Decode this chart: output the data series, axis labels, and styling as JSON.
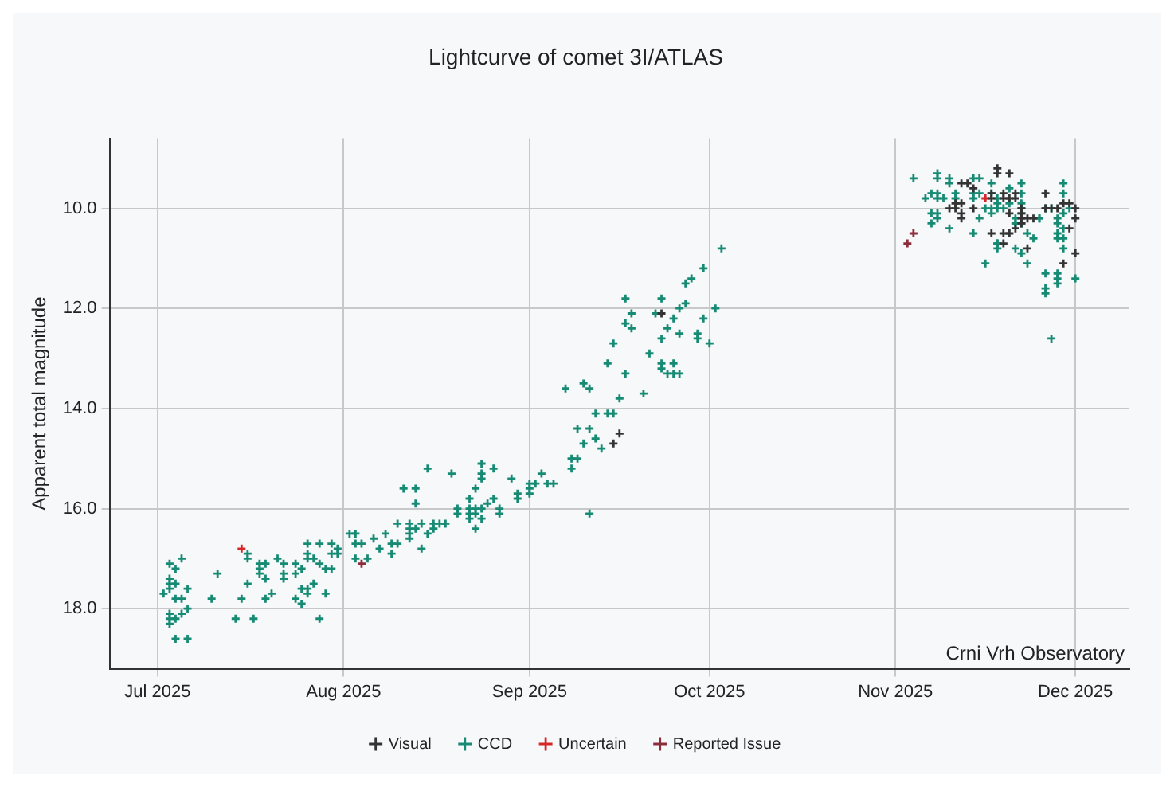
{
  "chart_data": {
    "type": "scatter",
    "title": "Lightcurve of comet 3I/ATLAS",
    "ylabel": "Apparent total magnitude",
    "annotations": [
      "Crni Vrh Observatory"
    ],
    "xlim": [
      "2025-06-23",
      "2025-12-10"
    ],
    "xticks": [
      {
        "value": "2025-07-01",
        "label": "Jul 2025"
      },
      {
        "value": "2025-08-01",
        "label": "Aug 2025"
      },
      {
        "value": "2025-09-01",
        "label": "Sep 2025"
      },
      {
        "value": "2025-10-01",
        "label": "Oct 2025"
      },
      {
        "value": "2025-11-01",
        "label": "Nov 2025"
      },
      {
        "value": "2025-12-01",
        "label": "Dec 2025"
      }
    ],
    "ylim": [
      19.2,
      8.6
    ],
    "yticks": [
      {
        "value": 10,
        "label": "10.0"
      },
      {
        "value": 12,
        "label": "12.0"
      },
      {
        "value": 14,
        "label": "14.0"
      },
      {
        "value": 16,
        "label": "16.0"
      },
      {
        "value": 18,
        "label": "18.0"
      }
    ],
    "grid": true,
    "legend": "bottom",
    "marker": "cross",
    "series": [
      {
        "name": "Visual",
        "color": "#333333",
        "x": [
          "2025-09-23",
          "2025-09-16",
          "2025-09-15",
          "2025-11-18",
          "2025-11-18",
          "2025-11-20",
          "2025-11-14",
          "2025-11-12",
          "2025-11-13",
          "2025-11-11",
          "2025-11-10",
          "2025-11-11",
          "2025-11-12",
          "2025-11-12",
          "2025-11-12",
          "2025-11-14",
          "2025-11-17",
          "2025-11-17",
          "2025-11-19",
          "2025-11-19",
          "2025-11-20",
          "2025-11-21",
          "2025-11-21",
          "2025-11-22",
          "2025-11-22",
          "2025-11-20",
          "2025-11-22",
          "2025-11-23",
          "2025-11-24",
          "2025-11-22",
          "2025-11-21",
          "2025-11-20",
          "2025-11-19",
          "2025-11-17",
          "2025-11-19",
          "2025-11-23",
          "2025-11-26",
          "2025-11-26",
          "2025-11-27",
          "2025-11-29",
          "2025-11-30",
          "2025-11-28",
          "2025-12-01",
          "2025-12-01",
          "2025-11-30",
          "2025-11-29",
          "2025-12-01"
        ],
        "values": [
          12.1,
          14.5,
          14.7,
          9.2,
          9.3,
          9.3,
          9.6,
          9.5,
          9.5,
          10.0,
          10.0,
          9.9,
          9.9,
          10.1,
          10.2,
          10.0,
          9.7,
          9.8,
          9.7,
          9.8,
          9.8,
          9.7,
          9.8,
          10.0,
          10.1,
          10.1,
          10.2,
          10.2,
          10.2,
          10.3,
          10.4,
          10.5,
          10.5,
          10.5,
          10.7,
          10.8,
          9.7,
          10.0,
          10.0,
          9.9,
          9.9,
          10.0,
          10.0,
          10.2,
          10.4,
          11.1,
          10.9
        ]
      },
      {
        "name": "CCD",
        "color": "#168a73",
        "x": [
          "2025-07-03",
          "2025-07-05",
          "2025-07-04",
          "2025-07-03",
          "2025-07-03",
          "2025-07-04",
          "2025-07-03",
          "2025-07-02",
          "2025-07-06",
          "2025-07-04",
          "2025-07-05",
          "2025-07-06",
          "2025-07-05",
          "2025-07-03",
          "2025-07-03",
          "2025-07-04",
          "2025-07-03",
          "2025-07-04",
          "2025-07-06",
          "2025-07-11",
          "2025-07-10",
          "2025-07-14",
          "2025-07-15",
          "2025-07-16",
          "2025-07-16",
          "2025-07-16",
          "2025-07-17",
          "2025-07-18",
          "2025-07-18",
          "2025-07-18",
          "2025-07-19",
          "2025-07-19",
          "2025-07-19",
          "2025-07-20",
          "2025-07-21",
          "2025-07-22",
          "2025-07-22",
          "2025-07-22",
          "2025-07-24",
          "2025-07-24",
          "2025-07-26",
          "2025-07-26",
          "2025-07-26",
          "2025-07-27",
          "2025-07-25",
          "2025-07-25",
          "2025-07-26",
          "2025-07-26",
          "2025-07-24",
          "2025-07-25",
          "2025-07-28",
          "2025-07-28",
          "2025-07-29",
          "2025-07-27",
          "2025-07-28",
          "2025-07-29",
          "2025-07-30",
          "2025-07-30",
          "2025-07-30",
          "2025-07-31",
          "2025-07-31",
          "2025-08-03",
          "2025-08-02",
          "2025-08-03",
          "2025-08-03",
          "2025-08-05",
          "2025-08-06",
          "2025-08-04",
          "2025-08-07",
          "2025-08-08",
          "2025-08-09",
          "2025-08-09",
          "2025-08-10",
          "2025-08-10",
          "2025-08-11",
          "2025-08-12",
          "2025-08-12",
          "2025-08-12",
          "2025-08-12",
          "2025-08-13",
          "2025-08-13",
          "2025-08-13",
          "2025-08-14",
          "2025-08-14",
          "2025-08-15",
          "2025-08-15",
          "2025-08-16",
          "2025-08-16",
          "2025-08-17",
          "2025-08-18",
          "2025-08-19",
          "2025-08-20",
          "2025-08-20",
          "2025-08-22",
          "2025-08-22",
          "2025-08-22",
          "2025-08-23",
          "2025-08-22",
          "2025-08-23",
          "2025-08-23",
          "2025-08-23",
          "2025-08-24",
          "2025-08-24",
          "2025-08-24",
          "2025-08-24",
          "2025-08-24",
          "2025-08-25",
          "2025-08-26",
          "2025-08-26",
          "2025-08-27",
          "2025-08-27",
          "2025-08-29",
          "2025-08-30",
          "2025-08-30",
          "2025-09-01",
          "2025-09-01",
          "2025-09-01",
          "2025-09-02",
          "2025-09-03",
          "2025-09-04",
          "2025-09-05",
          "2025-10-03",
          "2025-09-30",
          "2025-09-28",
          "2025-09-27",
          "2025-09-27",
          "2025-09-26",
          "2025-09-23",
          "2025-09-17",
          "2025-09-18",
          "2025-09-22",
          "2025-10-02",
          "2025-09-30",
          "2025-09-25",
          "2025-09-24",
          "2025-09-26",
          "2025-09-29",
          "2025-09-29",
          "2025-09-23",
          "2025-10-01",
          "2025-09-17",
          "2025-09-18",
          "2025-09-15",
          "2025-09-21",
          "2025-09-14",
          "2025-09-23",
          "2025-09-25",
          "2025-09-23",
          "2025-09-24",
          "2025-09-25",
          "2025-09-26",
          "2025-09-17",
          "2025-09-07",
          "2025-09-10",
          "2025-09-11",
          "2025-09-16",
          "2025-09-20",
          "2025-09-12",
          "2025-09-14",
          "2025-09-15",
          "2025-09-09",
          "2025-09-11",
          "2025-09-12",
          "2025-09-10",
          "2025-09-13",
          "2025-09-08",
          "2025-09-09",
          "2025-09-08",
          "2025-09-11",
          "2025-11-04",
          "2025-11-08",
          "2025-11-08",
          "2025-11-10",
          "2025-11-10",
          "2025-11-14",
          "2025-11-15",
          "2025-11-17",
          "2025-11-22",
          "2025-11-29",
          "2025-11-06",
          "2025-11-07",
          "2025-11-08",
          "2025-11-08",
          "2025-11-09",
          "2025-11-11",
          "2025-11-11",
          "2025-11-14",
          "2025-11-14",
          "2025-11-15",
          "2025-11-17",
          "2025-11-18",
          "2025-11-20",
          "2025-11-22",
          "2025-11-29",
          "2025-11-07",
          "2025-11-08",
          "2025-11-08",
          "2025-11-07",
          "2025-11-10",
          "2025-11-14",
          "2025-11-15",
          "2025-11-16",
          "2025-11-17",
          "2025-11-17",
          "2025-11-18",
          "2025-11-18",
          "2025-11-19",
          "2025-11-20",
          "2025-11-21",
          "2025-11-22",
          "2025-11-22",
          "2025-11-22",
          "2025-11-21",
          "2025-11-21",
          "2025-11-22",
          "2025-11-25",
          "2025-11-25",
          "2025-11-26",
          "2025-11-27",
          "2025-11-28",
          "2025-11-28",
          "2025-11-29",
          "2025-11-28",
          "2025-11-29",
          "2025-11-28",
          "2025-11-29",
          "2025-11-30",
          "2025-11-23",
          "2025-11-24",
          "2025-11-18",
          "2025-11-18",
          "2025-11-18",
          "2025-11-21",
          "2025-11-22",
          "2025-11-23",
          "2025-11-16",
          "2025-11-29",
          "2025-11-26",
          "2025-11-28",
          "2025-11-28",
          "2025-11-28",
          "2025-12-01",
          "2025-11-26",
          "2025-11-26",
          "2025-11-27"
        ],
        "values": [
          17.1,
          17.0,
          17.2,
          17.4,
          17.5,
          17.5,
          17.6,
          17.7,
          17.6,
          17.8,
          17.8,
          18.0,
          18.1,
          18.1,
          18.2,
          18.2,
          18.3,
          18.6,
          18.6,
          17.3,
          17.8,
          18.2,
          17.8,
          16.9,
          17.0,
          17.5,
          18.2,
          17.1,
          17.2,
          17.3,
          17.1,
          17.4,
          17.8,
          17.7,
          17.0,
          17.1,
          17.3,
          17.4,
          17.1,
          17.3,
          16.7,
          16.9,
          17.0,
          17.0,
          17.2,
          17.6,
          17.6,
          17.7,
          17.8,
          17.9,
          16.7,
          17.1,
          17.7,
          17.5,
          18.2,
          17.2,
          17.2,
          16.9,
          16.7,
          16.8,
          16.9,
          17.0,
          16.5,
          16.5,
          16.7,
          17.0,
          16.6,
          16.7,
          16.8,
          16.5,
          16.9,
          16.7,
          16.7,
          16.3,
          15.6,
          16.4,
          16.5,
          16.6,
          16.3,
          16.4,
          15.6,
          15.9,
          16.8,
          16.3,
          15.2,
          16.5,
          16.4,
          16.3,
          16.3,
          16.3,
          15.3,
          16.0,
          16.1,
          16.0,
          16.1,
          16.2,
          16.4,
          15.8,
          15.6,
          16.0,
          16.1,
          15.1,
          15.3,
          15.4,
          16.0,
          16.2,
          15.9,
          15.2,
          15.8,
          16.1,
          16.0,
          15.4,
          15.8,
          15.7,
          15.5,
          15.7,
          15.6,
          15.5,
          15.3,
          15.5,
          15.5,
          10.8,
          11.2,
          11.4,
          11.5,
          11.9,
          12.0,
          11.8,
          11.8,
          12.1,
          12.1,
          12.0,
          12.2,
          12.2,
          12.4,
          12.5,
          12.5,
          12.6,
          12.6,
          12.7,
          12.3,
          12.4,
          12.7,
          12.9,
          13.1,
          13.1,
          13.1,
          13.2,
          13.3,
          13.3,
          13.3,
          13.3,
          13.6,
          13.5,
          13.6,
          13.8,
          13.7,
          14.1,
          14.1,
          14.1,
          14.4,
          14.4,
          14.6,
          14.7,
          14.8,
          15.0,
          15.0,
          15.2,
          16.1,
          9.4,
          9.3,
          9.4,
          9.4,
          9.5,
          9.4,
          9.4,
          9.5,
          9.5,
          9.5,
          9.8,
          9.7,
          9.7,
          9.8,
          9.8,
          9.7,
          9.8,
          9.7,
          9.8,
          9.7,
          9.7,
          9.8,
          9.6,
          9.7,
          9.7,
          10.1,
          10.1,
          10.2,
          10.3,
          10.4,
          10.5,
          10.2,
          10.0,
          10.0,
          10.1,
          10.0,
          9.9,
          10.0,
          9.9,
          10.2,
          9.9,
          10.1,
          10.0,
          10.3,
          10.3,
          10.3,
          10.2,
          10.2,
          10.0,
          10.0,
          10.2,
          10.3,
          10.4,
          10.5,
          10.6,
          10.6,
          10.1,
          10.0,
          10.5,
          10.6,
          10.7,
          10.7,
          10.8,
          10.8,
          10.9,
          11.1,
          11.1,
          10.8,
          11.3,
          11.3,
          11.4,
          11.5,
          11.4,
          11.6,
          11.7,
          12.6
        ]
      },
      {
        "name": "Uncertain",
        "color": "#d62728",
        "x": [
          "2025-07-15",
          "2025-11-16"
        ],
        "values": [
          16.8,
          9.8
        ]
      },
      {
        "name": "Reported Issue",
        "color": "#8c2d3c",
        "x": [
          "2025-08-04",
          "2025-11-04",
          "2025-11-03"
        ],
        "values": [
          17.1,
          10.5,
          10.7
        ]
      }
    ]
  }
}
